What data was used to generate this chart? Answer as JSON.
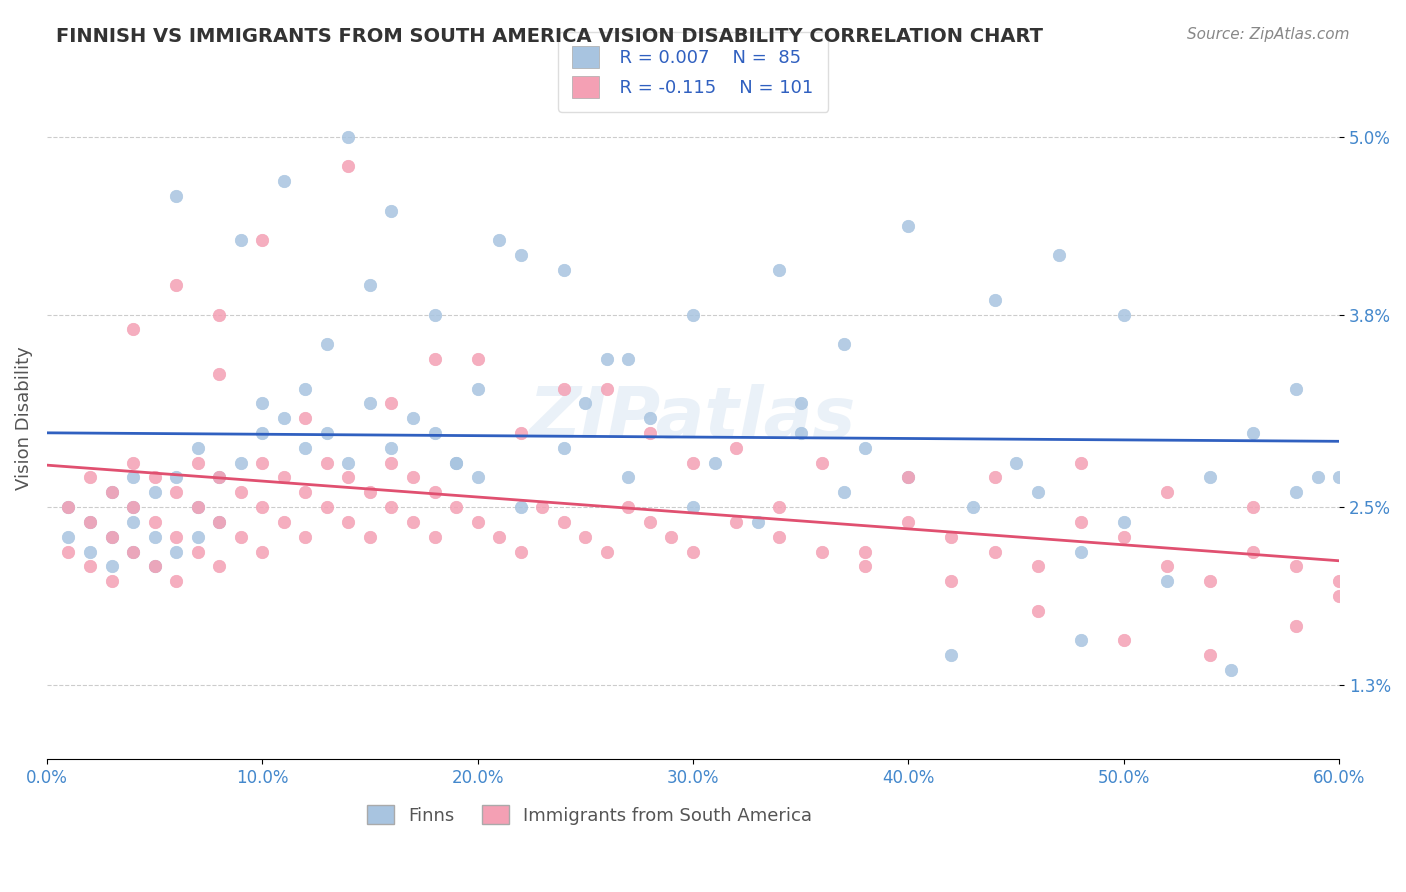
{
  "title": "FINNISH VS IMMIGRANTS FROM SOUTH AMERICA VISION DISABILITY CORRELATION CHART",
  "source": "Source: ZipAtlas.com",
  "xlabel": "",
  "ylabel": "Vision Disability",
  "xlim": [
    0.0,
    0.6
  ],
  "ylim": [
    0.008,
    0.054
  ],
  "yticks": [
    0.013,
    0.025,
    0.038,
    0.05
  ],
  "ytick_labels": [
    "1.3%",
    "2.5%",
    "3.8%",
    "5.0%"
  ],
  "xticks": [
    0.0,
    0.1,
    0.2,
    0.3,
    0.4,
    0.5,
    0.6
  ],
  "xtick_labels": [
    "0.0%",
    "10.0%",
    "20.0%",
    "30.0%",
    "40.0%",
    "50.0%",
    "60.0%"
  ],
  "legend_r1": "R = 0.007",
  "legend_n1": "N =  85",
  "legend_r2": "R = -0.115",
  "legend_n2": "N = 101",
  "color_finns": "#a8c4e0",
  "color_immigrants": "#f4a0b4",
  "color_trend_finns": "#3060c0",
  "color_trend_immigrants": "#e05070",
  "color_title": "#333333",
  "color_axis_labels": "#4488cc",
  "watermark": "ZIPatlas",
  "background_color": "#ffffff",
  "finns_x": [
    0.01,
    0.01,
    0.02,
    0.02,
    0.03,
    0.03,
    0.03,
    0.04,
    0.04,
    0.04,
    0.04,
    0.05,
    0.05,
    0.05,
    0.06,
    0.06,
    0.07,
    0.07,
    0.07,
    0.08,
    0.08,
    0.09,
    0.1,
    0.1,
    0.11,
    0.12,
    0.12,
    0.13,
    0.14,
    0.15,
    0.16,
    0.17,
    0.18,
    0.19,
    0.2,
    0.2,
    0.22,
    0.24,
    0.25,
    0.27,
    0.28,
    0.3,
    0.31,
    0.33,
    0.35,
    0.37,
    0.38,
    0.4,
    0.43,
    0.45,
    0.46,
    0.48,
    0.5,
    0.52,
    0.54,
    0.56,
    0.58,
    0.59,
    0.13,
    0.15,
    0.18,
    0.22,
    0.26,
    0.3,
    0.34,
    0.37,
    0.4,
    0.44,
    0.47,
    0.5,
    0.06,
    0.09,
    0.11,
    0.14,
    0.16,
    0.19,
    0.21,
    0.24,
    0.27,
    0.35,
    0.42,
    0.48,
    0.55,
    0.58,
    0.6
  ],
  "finns_y": [
    0.023,
    0.025,
    0.022,
    0.024,
    0.021,
    0.023,
    0.026,
    0.022,
    0.024,
    0.025,
    0.027,
    0.021,
    0.023,
    0.026,
    0.022,
    0.027,
    0.023,
    0.025,
    0.029,
    0.024,
    0.027,
    0.028,
    0.03,
    0.032,
    0.031,
    0.029,
    0.033,
    0.03,
    0.028,
    0.032,
    0.029,
    0.031,
    0.03,
    0.028,
    0.033,
    0.027,
    0.025,
    0.029,
    0.032,
    0.027,
    0.031,
    0.025,
    0.028,
    0.024,
    0.03,
    0.026,
    0.029,
    0.027,
    0.025,
    0.028,
    0.026,
    0.022,
    0.024,
    0.02,
    0.027,
    0.03,
    0.026,
    0.027,
    0.036,
    0.04,
    0.038,
    0.042,
    0.035,
    0.038,
    0.041,
    0.036,
    0.044,
    0.039,
    0.042,
    0.038,
    0.046,
    0.043,
    0.047,
    0.05,
    0.045,
    0.028,
    0.043,
    0.041,
    0.035,
    0.032,
    0.015,
    0.016,
    0.014,
    0.033,
    0.027
  ],
  "immigrants_x": [
    0.01,
    0.01,
    0.02,
    0.02,
    0.02,
    0.03,
    0.03,
    0.03,
    0.04,
    0.04,
    0.04,
    0.05,
    0.05,
    0.05,
    0.06,
    0.06,
    0.06,
    0.07,
    0.07,
    0.07,
    0.08,
    0.08,
    0.08,
    0.09,
    0.09,
    0.1,
    0.1,
    0.1,
    0.11,
    0.11,
    0.12,
    0.12,
    0.13,
    0.13,
    0.14,
    0.14,
    0.15,
    0.15,
    0.16,
    0.16,
    0.17,
    0.17,
    0.18,
    0.18,
    0.19,
    0.2,
    0.21,
    0.22,
    0.23,
    0.24,
    0.25,
    0.26,
    0.27,
    0.28,
    0.29,
    0.3,
    0.32,
    0.34,
    0.36,
    0.38,
    0.4,
    0.42,
    0.44,
    0.46,
    0.48,
    0.5,
    0.52,
    0.54,
    0.56,
    0.58,
    0.08,
    0.12,
    0.16,
    0.2,
    0.24,
    0.28,
    0.32,
    0.36,
    0.4,
    0.44,
    0.48,
    0.52,
    0.56,
    0.6,
    0.04,
    0.06,
    0.08,
    0.1,
    0.14,
    0.18,
    0.22,
    0.26,
    0.3,
    0.34,
    0.38,
    0.42,
    0.46,
    0.5,
    0.54,
    0.58,
    0.6
  ],
  "immigrants_y": [
    0.022,
    0.025,
    0.021,
    0.024,
    0.027,
    0.02,
    0.023,
    0.026,
    0.022,
    0.025,
    0.028,
    0.021,
    0.024,
    0.027,
    0.02,
    0.023,
    0.026,
    0.022,
    0.025,
    0.028,
    0.021,
    0.024,
    0.027,
    0.023,
    0.026,
    0.022,
    0.025,
    0.028,
    0.024,
    0.027,
    0.023,
    0.026,
    0.025,
    0.028,
    0.024,
    0.027,
    0.023,
    0.026,
    0.025,
    0.028,
    0.024,
    0.027,
    0.023,
    0.026,
    0.025,
    0.024,
    0.023,
    0.022,
    0.025,
    0.024,
    0.023,
    0.022,
    0.025,
    0.024,
    0.023,
    0.022,
    0.024,
    0.023,
    0.022,
    0.021,
    0.024,
    0.023,
    0.022,
    0.021,
    0.024,
    0.023,
    0.021,
    0.02,
    0.022,
    0.021,
    0.034,
    0.031,
    0.032,
    0.035,
    0.033,
    0.03,
    0.029,
    0.028,
    0.027,
    0.027,
    0.028,
    0.026,
    0.025,
    0.02,
    0.037,
    0.04,
    0.038,
    0.043,
    0.048,
    0.035,
    0.03,
    0.033,
    0.028,
    0.025,
    0.022,
    0.02,
    0.018,
    0.016,
    0.015,
    0.017,
    0.019
  ]
}
